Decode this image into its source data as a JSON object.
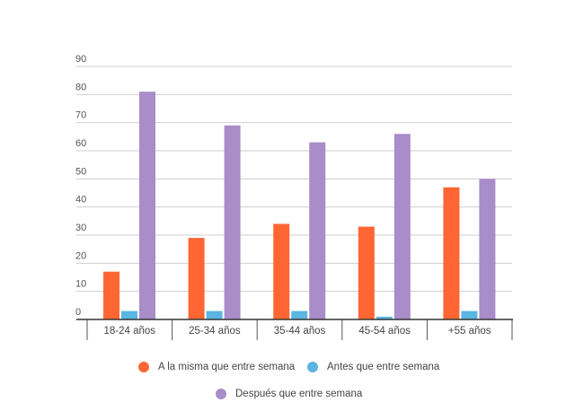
{
  "chart_data": {
    "type": "bar",
    "categories": [
      "18-24 años",
      "25-34 años",
      "35-44 años",
      "45-54 años",
      "+55 años"
    ],
    "series": [
      {
        "name": "A la misma que entre semana",
        "color": "#FF6633",
        "values": [
          17,
          29,
          34,
          33,
          47
        ]
      },
      {
        "name": "Antes que entre semana",
        "color": "#5BB5E2",
        "values": [
          3,
          3,
          3,
          1,
          3
        ]
      },
      {
        "name": "Después que entre semana",
        "color": "#A88DC8",
        "values": [
          81,
          69,
          63,
          66,
          50
        ]
      }
    ],
    "yticks": [
      "0",
      "10",
      "20",
      "30",
      "40",
      "50",
      "60",
      "70",
      "80",
      "90"
    ],
    "ylim": [
      0,
      90
    ],
    "grid": true,
    "legend_placement": "bottom"
  }
}
